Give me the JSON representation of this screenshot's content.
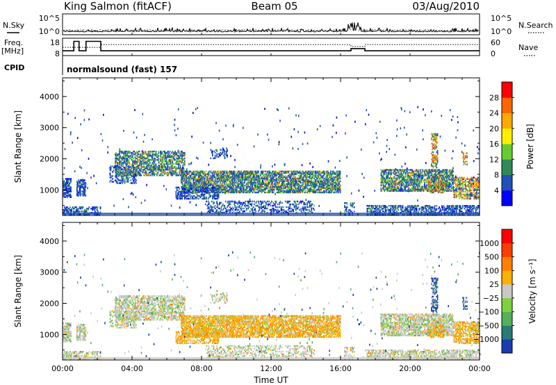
{
  "header": {
    "station": "King Salmon (fitACF)",
    "beam": "Beam 05",
    "date": "03/Aug/2010"
  },
  "left_labels": {
    "nsky": "N.Sky",
    "freq_line1": "Freq.",
    "freq_line2": "[MHz]",
    "cpid": "CPID"
  },
  "right_labels": {
    "nsearch": "N.Search",
    "nave": "Nave"
  },
  "cpid_text": "normalsound (fast) 157",
  "chart_data": [
    {
      "type": "line",
      "name": "noise-panel",
      "left_ticks": [
        "10^5",
        "10^0"
      ],
      "right_ticks": [
        "10^5",
        "10^0"
      ],
      "x_ticks": [
        "00:00",
        "04:00",
        "08:00",
        "12:00",
        "16:00",
        "20:00",
        "00:00"
      ]
    },
    {
      "type": "line",
      "name": "frequency-nave-panel",
      "left_ticks": [
        18,
        8
      ],
      "right_ticks": [
        60,
        0
      ],
      "freq_steps": [
        {
          "t": 0.0,
          "f": 10.2
        },
        {
          "t": 0.65,
          "f": 17.0
        },
        {
          "t": 0.95,
          "f": 10.2
        },
        {
          "t": 1.35,
          "f": 17.0
        },
        {
          "t": 2.2,
          "f": 10.2
        },
        {
          "t": 16.6,
          "f": 11.8
        },
        {
          "t": 17.4,
          "f": 10.2
        },
        {
          "t": 24.0,
          "f": 10.2
        }
      ],
      "nave_steps": [
        {
          "t": 0.0,
          "n": 28
        },
        {
          "t": 2.2,
          "n": 40
        },
        {
          "t": 16.6,
          "n": 32
        },
        {
          "t": 17.4,
          "n": 40
        },
        {
          "t": 24.0,
          "n": 40
        }
      ]
    },
    {
      "type": "heatmap",
      "name": "power-panel",
      "ylabel": "Slant Range [km]",
      "y_ticks": [
        1000,
        2000,
        3000,
        4000
      ],
      "ylim": [
        180,
        4600
      ],
      "xlim": [
        0,
        24
      ],
      "x_ticks": [
        "00:00",
        "04:00",
        "08:00",
        "12:00",
        "16:00",
        "20:00",
        "00:00"
      ],
      "colorbar_label": "Power [dB]",
      "colorbar_ticks": [
        "4",
        "8",
        "12",
        "16",
        "20",
        "24",
        "28"
      ],
      "colorbar_colors": [
        "#0000ff",
        "#1f52b8",
        "#2e8b57",
        "#66cc33",
        "#ffee00",
        "#ffaa00",
        "#ff6600",
        "#ff0000"
      ]
    },
    {
      "type": "heatmap",
      "name": "velocity-panel",
      "ylabel": "Slant Range [km]",
      "y_ticks": [
        1000,
        2000,
        3000,
        4000
      ],
      "ylim": [
        180,
        4600
      ],
      "xlim": [
        0,
        24
      ],
      "x_ticks": [
        "00:00",
        "04:00",
        "08:00",
        "12:00",
        "16:00",
        "20:00",
        "00:00"
      ],
      "xlabel": "Time UT",
      "colorbar_label": "Velocity [m s⁻¹]",
      "colorbar_ticks": [
        "1000",
        "500",
        "100",
        "25",
        "−25",
        "−100",
        "−500",
        "−1000"
      ],
      "colorbar_colors": [
        "#1a3cb0",
        "#2a7a78",
        "#55b05a",
        "#7cd23a",
        "#c8c8c8",
        "#ffb000",
        "#ff8000",
        "#ff3c00",
        "#ff0000"
      ]
    }
  ]
}
